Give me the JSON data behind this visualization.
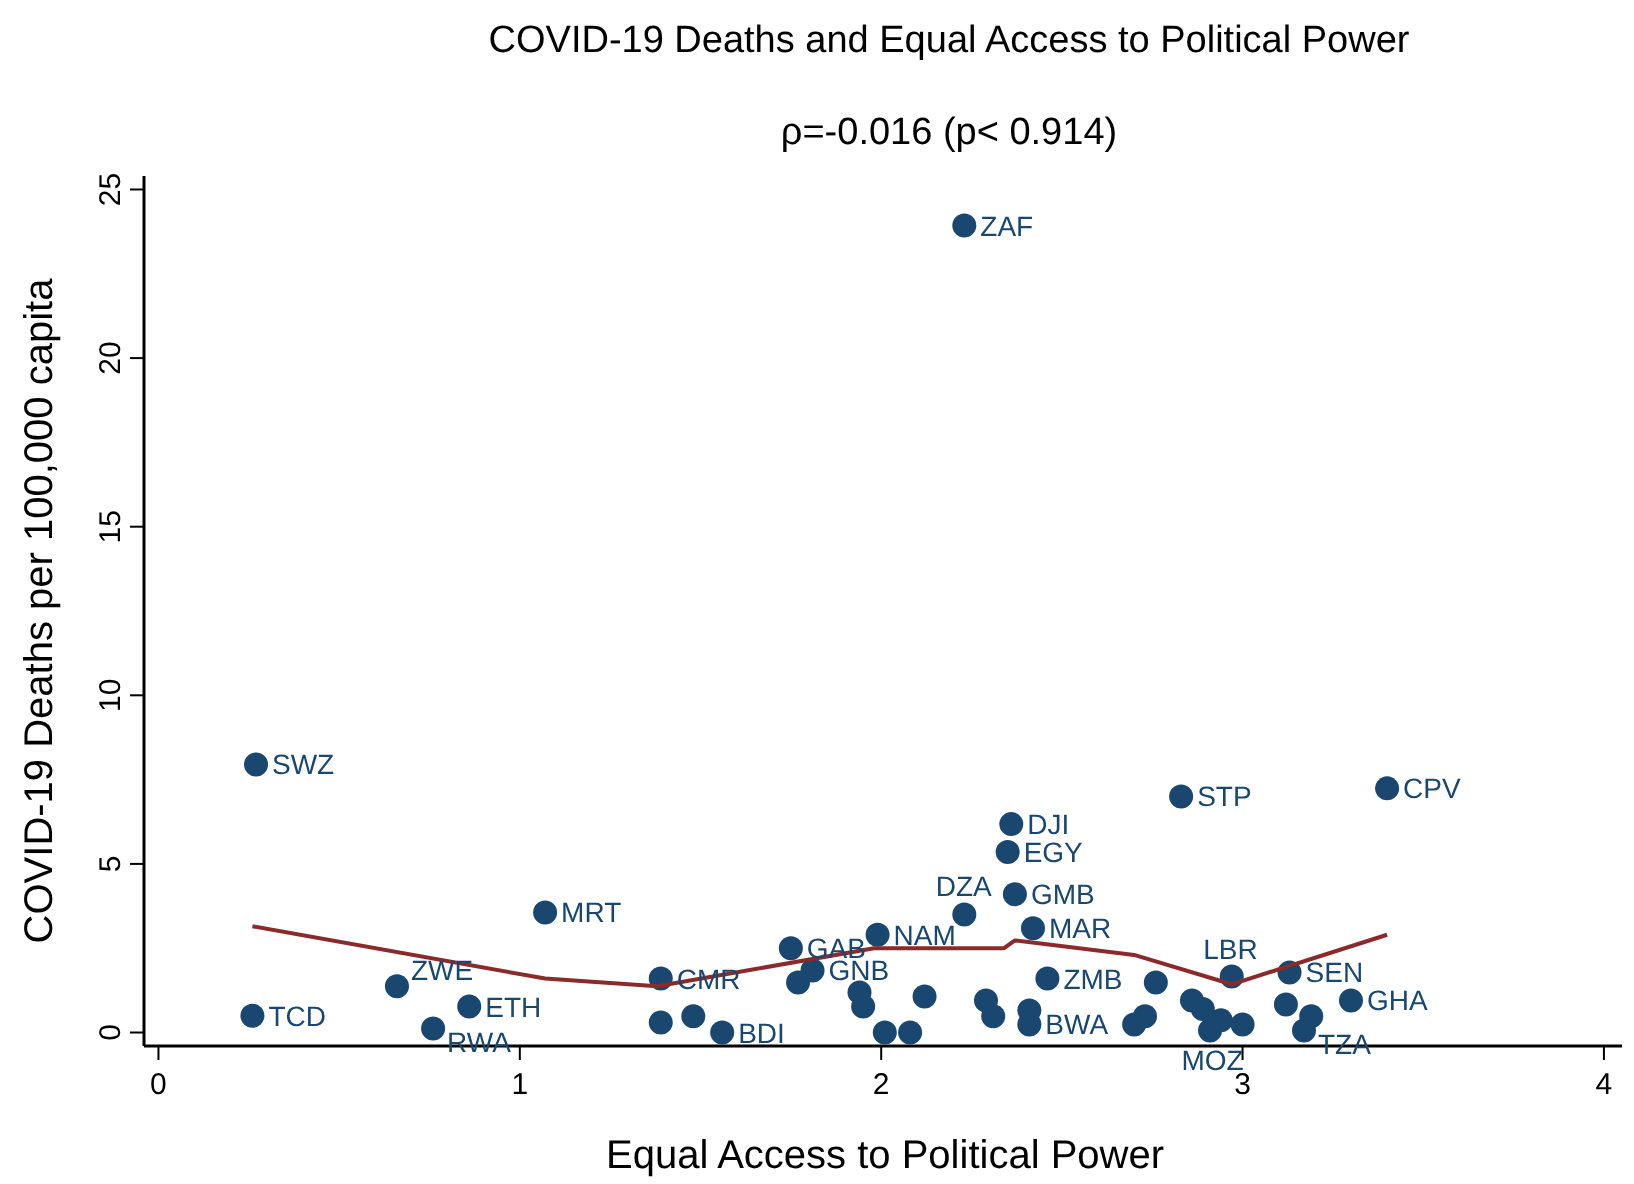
{
  "chart_data": {
    "type": "scatter",
    "title": "COVID-19 Deaths and Equal Access to Political Power",
    "subtitle": "ρ=-0.016 (p< 0.914)",
    "xlabel": "Equal Access to Political Power",
    "ylabel": "COVID-19 Deaths per 100,000 capita",
    "xlim": [
      -0.04,
      4.05
    ],
    "ylim": [
      -0.4,
      25.4
    ],
    "xticks": [
      0,
      1,
      2,
      3,
      4
    ],
    "yticks": [
      0,
      5,
      10,
      15,
      20,
      25
    ],
    "grid": false,
    "series": [
      {
        "color": "#1a476f",
        "marker": "circle",
        "x": [
          0.26,
          0.27,
          0.66,
          0.86,
          0.76,
          1.07,
          1.39,
          1.39,
          1.48,
          1.56,
          1.75,
          1.81,
          1.77,
          1.94,
          1.95,
          1.99,
          2.01,
          2.08,
          2.12,
          2.23,
          2.23,
          2.36,
          2.35,
          2.37,
          2.42,
          2.29,
          2.31,
          2.41,
          2.41,
          2.46,
          2.76,
          2.83,
          3.4,
          2.97,
          3.13,
          2.7,
          2.73,
          2.86,
          2.89,
          3.12,
          3.3,
          2.91,
          3.17,
          3.19,
          2.94,
          3.0
        ],
        "values": [
          0.5,
          7.95,
          1.37,
          0.77,
          0.12,
          3.56,
          1.6,
          0.3,
          0.48,
          0.0,
          2.5,
          1.84,
          1.48,
          1.19,
          0.77,
          2.9,
          0.0,
          0.0,
          1.07,
          23.93,
          3.5,
          6.18,
          5.35,
          4.1,
          3.09,
          0.95,
          0.48,
          0.24,
          0.65,
          1.6,
          1.48,
          7.0,
          7.24,
          1.66,
          1.78,
          0.24,
          0.48,
          0.95,
          0.7,
          0.83,
          0.95,
          0.06,
          0.06,
          0.48,
          0.36,
          0.24
        ]
      },
      {
        "type": "line",
        "color": "#8b2a2a",
        "marker": "none",
        "line_style": "solid",
        "x": [
          0.26,
          1.07,
          1.38,
          1.98,
          2.34,
          2.37,
          2.7,
          2.97,
          3.4
        ],
        "values": [
          3.15,
          1.6,
          1.37,
          2.5,
          2.5,
          2.73,
          2.3,
          1.43,
          2.9
        ]
      }
    ],
    "annotations": [
      {
        "text": "TCD",
        "x": 0.26,
        "y": 0.5
      },
      {
        "text": "SWZ",
        "x": 0.27,
        "y": 7.95
      },
      {
        "text": "ZWE",
        "x": 0.66,
        "y": 1.37
      },
      {
        "text": "RWA",
        "x": 0.76,
        "y": 0.12
      },
      {
        "text": "ETH",
        "x": 0.86,
        "y": 0.77
      },
      {
        "text": "MRT",
        "x": 1.07,
        "y": 3.56
      },
      {
        "text": "CMR",
        "x": 1.39,
        "y": 1.6
      },
      {
        "text": "BDI",
        "x": 1.56,
        "y": 0.0
      },
      {
        "text": "GAB",
        "x": 1.75,
        "y": 2.5
      },
      {
        "text": "GNB",
        "x": 1.81,
        "y": 1.84
      },
      {
        "text": "NAM",
        "x": 1.99,
        "y": 2.9
      },
      {
        "text": "ZAF",
        "x": 2.23,
        "y": 23.93
      },
      {
        "text": "DZA",
        "x": 2.23,
        "y": 3.5
      },
      {
        "text": "DJI",
        "x": 2.36,
        "y": 6.18
      },
      {
        "text": "EGY",
        "x": 2.35,
        "y": 5.35
      },
      {
        "text": "GMB",
        "x": 2.37,
        "y": 4.1
      },
      {
        "text": "MAR",
        "x": 2.42,
        "y": 3.09
      },
      {
        "text": "BWA",
        "x": 2.41,
        "y": 0.24
      },
      {
        "text": "ZMB",
        "x": 2.46,
        "y": 1.6
      },
      {
        "text": "STP",
        "x": 2.83,
        "y": 7.0
      },
      {
        "text": "CPV",
        "x": 3.4,
        "y": 7.24
      },
      {
        "text": "LBR",
        "x": 2.97,
        "y": 1.66
      },
      {
        "text": "SEN",
        "x": 3.13,
        "y": 1.78
      },
      {
        "text": "GHA",
        "x": 3.3,
        "y": 0.95
      },
      {
        "text": "MOZ",
        "x": 2.91,
        "y": 0.06
      },
      {
        "text": "TZA",
        "x": 3.17,
        "y": 0.06
      }
    ]
  }
}
